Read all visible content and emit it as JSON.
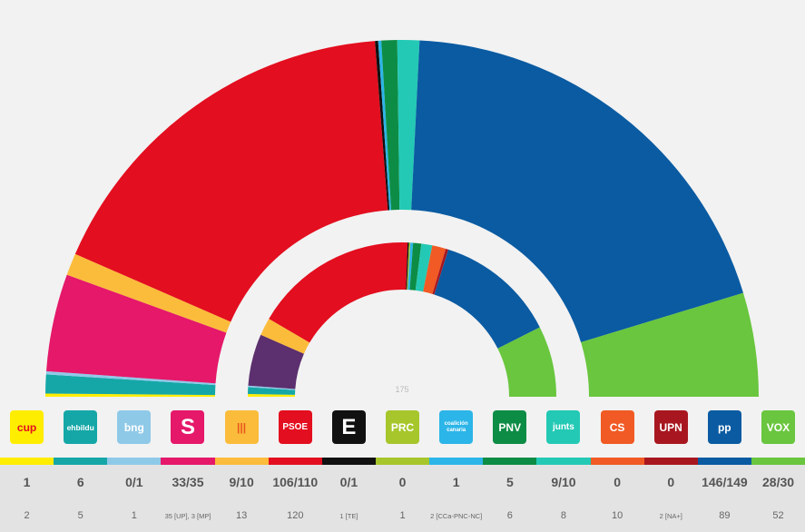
{
  "chart_data": {
    "type": "parliament-donut",
    "center_label": "175",
    "outer_ring": {
      "description": "Seats by party",
      "order": [
        "CUP",
        "EH Bildu",
        "BNG",
        "Sumar",
        "ERC",
        "PSOE",
        "Teruel Existe",
        "PRC",
        "CC",
        "PNV",
        "Junts",
        "Cs",
        "UPN",
        "PP",
        "Vox"
      ],
      "values": [
        1,
        6,
        1,
        31,
        7,
        121,
        1,
        0,
        1,
        5,
        7,
        0,
        0,
        137,
        33
      ],
      "colors": [
        "#ffed00",
        "#15a7a7",
        "#8fc9e8",
        "#e5186a",
        "#fbbc3b",
        "#e30e1f",
        "#111111",
        "#a6c62b",
        "#2cb5e8",
        "#0d8c45",
        "#23c9b4",
        "#f15a24",
        "#a81720",
        "#0a5ba2",
        "#69c63e"
      ]
    },
    "inner_ring": {
      "description": "Previous legislature seats",
      "order": [
        "CUP",
        "EH Bildu",
        "BNG",
        "Sumar",
        "ERC",
        "PSOE",
        "Teruel Existe",
        "PRC",
        "CC",
        "PNV",
        "Junts",
        "Cs",
        "UPN",
        "PP",
        "Vox"
      ],
      "values": [
        2,
        5,
        1,
        38,
        13,
        120,
        1,
        1,
        2,
        6,
        8,
        10,
        2,
        89,
        52
      ],
      "colors": [
        "#ffed00",
        "#15a7a7",
        "#8fc9e8",
        "#5c2f6e",
        "#fbbc3b",
        "#e30e1f",
        "#111111",
        "#a6c62b",
        "#2cb5e8",
        "#0d8c45",
        "#23c9b4",
        "#f15a24",
        "#a81720",
        "#0a5ba2",
        "#69c63e"
      ]
    }
  },
  "parties": [
    {
      "name": "CUP",
      "logo_text": "cup",
      "logo_bg": "#ffed00",
      "logo_fg": "#e30e1f",
      "strip_color": "#ffed00",
      "projection": "1",
      "previous": "2"
    },
    {
      "name": "EH Bildu",
      "logo_text": "ehbildu",
      "logo_bg": "#15a7a7",
      "logo_fg": "#ffffff",
      "strip_color": "#15a7a7",
      "projection": "6",
      "previous": "5"
    },
    {
      "name": "BNG",
      "logo_text": "bng",
      "logo_bg": "#8fc9e8",
      "logo_fg": "#ffffff",
      "strip_color": "#8fc9e8",
      "projection": "0/1",
      "previous": "1"
    },
    {
      "name": "Sumar",
      "logo_text": "S",
      "logo_bg": "#e5186a",
      "logo_fg": "#ffffff",
      "strip_color": "#e5186a",
      "projection": "33/35",
      "previous": "35 [UP], 3 [MP]"
    },
    {
      "name": "ERC",
      "logo_text": "|||",
      "logo_bg": "#fbbc3b",
      "logo_fg": "#e8551f",
      "strip_color": "#fbbc3b",
      "projection": "9/10",
      "previous": "13"
    },
    {
      "name": "PSOE",
      "logo_text": "PSOE",
      "logo_bg": "#e30e1f",
      "logo_fg": "#ffffff",
      "strip_color": "#e30e1f",
      "projection": "106/110",
      "previous": "120"
    },
    {
      "name": "Teruel Existe",
      "logo_text": "E",
      "logo_bg": "#111111",
      "logo_fg": "#ffffff",
      "strip_color": "#111111",
      "projection": "0/1",
      "previous": "1 [TE]"
    },
    {
      "name": "PRC",
      "logo_text": "PRC",
      "logo_bg": "#a6c62b",
      "logo_fg": "#ffffff",
      "strip_color": "#a6c62b",
      "projection": "0",
      "previous": "1"
    },
    {
      "name": "CC",
      "logo_text": "coalición canaria",
      "logo_bg": "#2cb5e8",
      "logo_fg": "#ffffff",
      "strip_color": "#2cb5e8",
      "projection": "1",
      "previous": "2 [CCa-PNC-NC]"
    },
    {
      "name": "PNV",
      "logo_text": "PNV",
      "logo_bg": "#0d8c45",
      "logo_fg": "#ffffff",
      "strip_color": "#0d8c45",
      "projection": "5",
      "previous": "6"
    },
    {
      "name": "Junts",
      "logo_text": "junts",
      "logo_bg": "#23c9b4",
      "logo_fg": "#ffffff",
      "strip_color": "#23c9b4",
      "projection": "9/10",
      "previous": "8"
    },
    {
      "name": "Cs",
      "logo_text": "CS",
      "logo_bg": "#f15a24",
      "logo_fg": "#ffffff",
      "strip_color": "#f15a24",
      "projection": "0",
      "previous": "10"
    },
    {
      "name": "UPN",
      "logo_text": "UPN",
      "logo_bg": "#a81720",
      "logo_fg": "#ffffff",
      "strip_color": "#a81720",
      "projection": "0",
      "previous": "2 [NA+]"
    },
    {
      "name": "PP",
      "logo_text": "pp",
      "logo_bg": "#0a5ba2",
      "logo_fg": "#ffffff",
      "strip_color": "#0a5ba2",
      "projection": "146/149",
      "previous": "89"
    },
    {
      "name": "Vox",
      "logo_text": "VOX",
      "logo_bg": "#69c63e",
      "logo_fg": "#ffffff",
      "strip_color": "#69c63e",
      "projection": "28/30",
      "previous": "52"
    }
  ]
}
